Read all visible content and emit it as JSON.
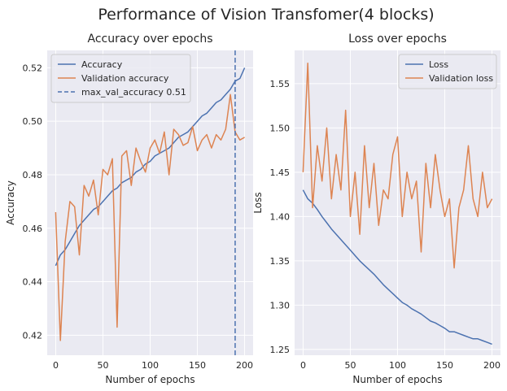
{
  "figure": {
    "title": "Performance of Vision Transfomer(4 blocks)"
  },
  "colors": {
    "blue": "#4c72b0",
    "orange": "#dd8452",
    "axes_bg": "#eaeaf2",
    "grid": "#ffffff"
  },
  "chart_data": [
    {
      "type": "line",
      "title": "Accuracy over epochs",
      "xlabel": "Number of epochs",
      "ylabel": "Accuracy",
      "xlim": [
        -9,
        209
      ],
      "ylim": [
        0.4125,
        0.5265
      ],
      "xticks": [
        0,
        50,
        100,
        150,
        200
      ],
      "yticks": [
        0.42,
        0.44,
        0.46,
        0.48,
        0.5,
        0.52
      ],
      "ytick_labels": [
        "0.42",
        "0.44",
        "0.46",
        "0.48",
        "0.50",
        "0.52"
      ],
      "grid": true,
      "legend_position": "top-left",
      "vline": {
        "label": "max_val_accuracy 0.51",
        "x": 190
      },
      "series": [
        {
          "name": "Accuracy",
          "color": "#4c72b0",
          "x_start": 0,
          "x_step": 5,
          "values": [
            0.446,
            0.45,
            0.452,
            0.455,
            0.458,
            0.461,
            0.463,
            0.465,
            0.467,
            0.468,
            0.47,
            0.472,
            0.474,
            0.475,
            0.477,
            0.478,
            0.479,
            0.481,
            0.482,
            0.484,
            0.485,
            0.487,
            0.488,
            0.489,
            0.49,
            0.492,
            0.494,
            0.495,
            0.496,
            0.498,
            0.5,
            0.502,
            0.503,
            0.505,
            0.507,
            0.508,
            0.51,
            0.512,
            0.515,
            0.516,
            0.52
          ]
        },
        {
          "name": "Validation accuracy",
          "color": "#dd8452",
          "x_start": 0,
          "x_step": 5,
          "values": [
            0.466,
            0.418,
            0.455,
            0.47,
            0.468,
            0.45,
            0.476,
            0.472,
            0.478,
            0.465,
            0.482,
            0.48,
            0.486,
            0.423,
            0.487,
            0.489,
            0.476,
            0.49,
            0.485,
            0.481,
            0.49,
            0.493,
            0.488,
            0.496,
            0.48,
            0.497,
            0.495,
            0.491,
            0.492,
            0.498,
            0.489,
            0.493,
            0.495,
            0.49,
            0.495,
            0.493,
            0.497,
            0.51,
            0.496,
            0.493,
            0.494
          ]
        }
      ]
    },
    {
      "type": "line",
      "title": "Loss over epochs",
      "xlabel": "Number of epochs",
      "ylabel": "Loss",
      "xlim": [
        -9,
        209
      ],
      "ylim": [
        1.2435,
        1.5875
      ],
      "xticks": [
        0,
        50,
        100,
        150,
        200
      ],
      "yticks": [
        1.25,
        1.3,
        1.35,
        1.4,
        1.45,
        1.5,
        1.55
      ],
      "ytick_labels": [
        "1.25",
        "1.30",
        "1.35",
        "1.40",
        "1.45",
        "1.50",
        "1.55"
      ],
      "grid": true,
      "legend_position": "top-right",
      "series": [
        {
          "name": "Loss",
          "color": "#4c72b0",
          "x_start": 0,
          "x_step": 5,
          "values": [
            1.43,
            1.42,
            1.415,
            1.408,
            1.4,
            1.393,
            1.386,
            1.38,
            1.374,
            1.368,
            1.362,
            1.356,
            1.35,
            1.345,
            1.34,
            1.335,
            1.329,
            1.323,
            1.318,
            1.313,
            1.308,
            1.303,
            1.3,
            1.296,
            1.293,
            1.29,
            1.286,
            1.282,
            1.28,
            1.277,
            1.274,
            1.27,
            1.27,
            1.268,
            1.266,
            1.264,
            1.262,
            1.262,
            1.26,
            1.258,
            1.256
          ]
        },
        {
          "name": "Validation loss",
          "color": "#dd8452",
          "x_start": 0,
          "x_step": 5,
          "values": [
            1.45,
            1.573,
            1.41,
            1.48,
            1.44,
            1.5,
            1.42,
            1.47,
            1.43,
            1.52,
            1.4,
            1.45,
            1.38,
            1.48,
            1.41,
            1.46,
            1.39,
            1.43,
            1.42,
            1.47,
            1.49,
            1.4,
            1.45,
            1.42,
            1.44,
            1.36,
            1.46,
            1.41,
            1.47,
            1.43,
            1.4,
            1.42,
            1.342,
            1.41,
            1.43,
            1.48,
            1.42,
            1.4,
            1.45,
            1.41,
            1.42
          ]
        }
      ]
    }
  ]
}
